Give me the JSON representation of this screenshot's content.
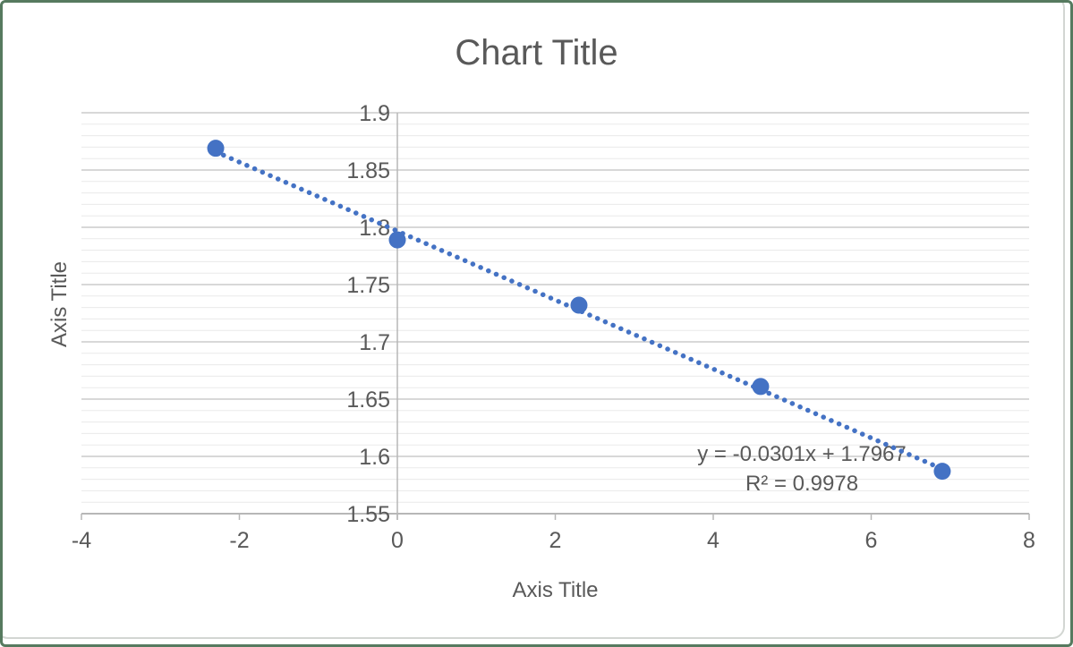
{
  "chart": {
    "title": "Chart Title",
    "x_axis_title": "Axis Title",
    "y_axis_title": "Axis Title",
    "equation_line1": "y = -0.0301x + 1.7967",
    "equation_line2": "R² = 0.9978"
  },
  "chart_data": {
    "type": "scatter",
    "title": "Chart Title",
    "xlabel": "Axis Title",
    "ylabel": "Axis Title",
    "points": [
      {
        "x": -2.3,
        "y": 1.869
      },
      {
        "x": 0.0,
        "y": 1.789
      },
      {
        "x": 2.3,
        "y": 1.732
      },
      {
        "x": 4.6,
        "y": 1.661
      },
      {
        "x": 6.9,
        "y": 1.587
      }
    ],
    "trendline": {
      "type": "linear",
      "slope": -0.0301,
      "intercept": 1.7967,
      "r_squared": 0.9978,
      "equation_label": "y = -0.0301x + 1.7967",
      "r2_label": "R² = 0.9978",
      "style": "dotted",
      "x_start": -2.3,
      "x_end": 6.9
    },
    "xlim": [
      -4,
      8
    ],
    "ylim": [
      1.55,
      1.9
    ],
    "x_ticks": [
      -4,
      -2,
      0,
      2,
      4,
      6,
      8
    ],
    "y_ticks": [
      1.55,
      1.6,
      1.65,
      1.7,
      1.75,
      1.8,
      1.85,
      1.9
    ],
    "y_minor_unit": 0.01,
    "y_major_unit": 0.05,
    "grid": "horizontal major+minor",
    "legend": "none"
  },
  "colors": {
    "frame_border": "#567a5f",
    "chart_border": "#d2d6d2",
    "text": "#595959",
    "major_gridline": "#d2d2d2",
    "minor_gridline": "#eaeaea",
    "axis_line": "#b7b7b7",
    "marker": "#4472C4",
    "trendline": "#4472C4"
  }
}
